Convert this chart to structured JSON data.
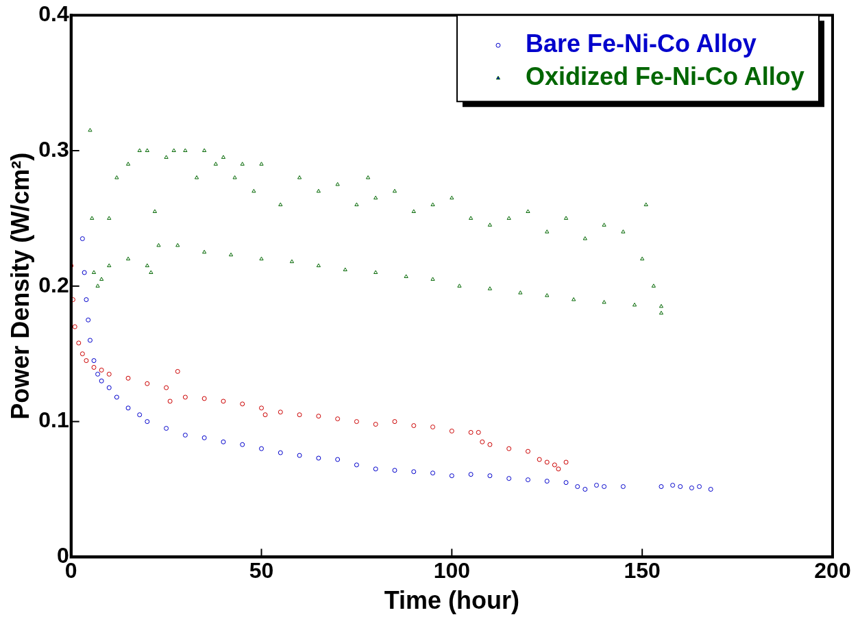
{
  "chart_data": {
    "type": "scatter",
    "xlabel": "Time (hour)",
    "ylabel": "Power Density (W/cm²)",
    "xlim": [
      0,
      200
    ],
    "ylim": [
      0,
      0.4
    ],
    "xticks": [
      0,
      50,
      100,
      150,
      200
    ],
    "yticks": [
      0,
      0.1,
      0.2,
      0.3,
      0.4
    ],
    "grid": false,
    "legend": "top right",
    "series": [
      {
        "name": "Bare Fe-Ni-Co Alloy",
        "color": "#0000cc",
        "marker": "circle",
        "x": [
          3,
          3.5,
          4,
          4.5,
          5,
          6,
          7,
          8,
          10,
          12,
          15,
          18,
          20,
          25,
          30,
          35,
          40,
          45,
          50,
          55,
          60,
          65,
          70,
          75,
          80,
          85,
          90,
          95,
          100,
          105,
          110,
          115,
          120,
          125,
          130,
          133,
          135,
          138,
          140,
          145,
          155,
          158,
          160,
          163,
          165,
          168
        ],
        "values": [
          0.235,
          0.21,
          0.19,
          0.175,
          0.16,
          0.145,
          0.135,
          0.13,
          0.125,
          0.118,
          0.11,
          0.105,
          0.1,
          0.095,
          0.09,
          0.088,
          0.085,
          0.083,
          0.08,
          0.077,
          0.075,
          0.073,
          0.072,
          0.068,
          0.065,
          0.064,
          0.063,
          0.062,
          0.06,
          0.061,
          0.06,
          0.058,
          0.057,
          0.056,
          0.055,
          0.052,
          0.05,
          0.053,
          0.052,
          0.052,
          0.052,
          0.053,
          0.052,
          0.051,
          0.052,
          0.05
        ]
      },
      {
        "name": "Oxidized Fe-Ni-Co Alloy",
        "color": "#006600",
        "marker": "triangle",
        "x": [
          5,
          5.5,
          6,
          7,
          8,
          10,
          12,
          15,
          18,
          20,
          21,
          22,
          23,
          25,
          27,
          30,
          33,
          35,
          38,
          40,
          43,
          45,
          48,
          50,
          55,
          60,
          65,
          70,
          75,
          78,
          80,
          85,
          90,
          95,
          100,
          105,
          110,
          115,
          120,
          125,
          130,
          135,
          140,
          145,
          150,
          151,
          153,
          155,
          10,
          15,
          20,
          28,
          35,
          42,
          50,
          58,
          65,
          72,
          80,
          88,
          95,
          102,
          110,
          118,
          125,
          132,
          140,
          148,
          155
        ],
        "values": [
          0.315,
          0.25,
          0.21,
          0.2,
          0.205,
          0.25,
          0.28,
          0.29,
          0.3,
          0.3,
          0.21,
          0.255,
          0.23,
          0.295,
          0.3,
          0.3,
          0.28,
          0.3,
          0.29,
          0.295,
          0.28,
          0.29,
          0.27,
          0.29,
          0.26,
          0.28,
          0.27,
          0.275,
          0.26,
          0.28,
          0.265,
          0.27,
          0.255,
          0.26,
          0.265,
          0.25,
          0.245,
          0.25,
          0.255,
          0.24,
          0.25,
          0.235,
          0.245,
          0.24,
          0.22,
          0.26,
          0.2,
          0.18,
          0.215,
          0.22,
          0.215,
          0.23,
          0.225,
          0.223,
          0.22,
          0.218,
          0.215,
          0.212,
          0.21,
          0.207,
          0.205,
          0.2,
          0.198,
          0.195,
          0.193,
          0.19,
          0.188,
          0.186,
          0.185
        ]
      },
      {
        "color": "#cc0000",
        "marker": "circle",
        "x": [
          0,
          0.5,
          1,
          2,
          3,
          4,
          6,
          8,
          10,
          15,
          20,
          25,
          26,
          28,
          30,
          35,
          40,
          45,
          50,
          51,
          55,
          60,
          65,
          70,
          75,
          80,
          85,
          90,
          95,
          100,
          105,
          107,
          108,
          110,
          115,
          120,
          123,
          125,
          127,
          128,
          130
        ],
        "values": [
          0.215,
          0.19,
          0.17,
          0.158,
          0.15,
          0.145,
          0.14,
          0.138,
          0.135,
          0.132,
          0.128,
          0.125,
          0.115,
          0.137,
          0.118,
          0.117,
          0.115,
          0.113,
          0.11,
          0.105,
          0.107,
          0.105,
          0.104,
          0.102,
          0.1,
          0.098,
          0.1,
          0.097,
          0.096,
          0.093,
          0.092,
          0.092,
          0.085,
          0.083,
          0.08,
          0.078,
          0.072,
          0.07,
          0.068,
          0.065,
          0.07
        ]
      }
    ]
  }
}
